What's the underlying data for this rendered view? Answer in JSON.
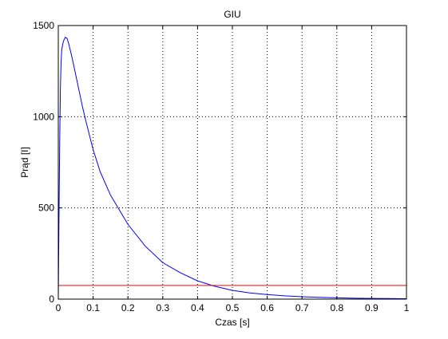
{
  "chart_data": {
    "type": "line",
    "title": "GIU",
    "xlabel": "Czas [s]",
    "ylabel": "Prąd [I]",
    "xlim": [
      0,
      1
    ],
    "ylim": [
      0,
      1500
    ],
    "grid": true,
    "x_ticks": [
      "0",
      "0.1",
      "0.2",
      "0.3",
      "0.4",
      "0.5",
      "0.6",
      "0.7",
      "0.8",
      "0.9",
      "1"
    ],
    "y_ticks": [
      "0",
      "500",
      "1000",
      "1500"
    ],
    "series": [
      {
        "color": "#0000ff",
        "x": [
          0,
          0.002,
          0.004,
          0.006,
          0.008,
          0.01,
          0.013,
          0.016,
          0.02,
          0.025,
          0.03,
          0.04,
          0.05,
          0.06,
          0.07,
          0.08,
          0.1,
          0.12,
          0.15,
          0.2,
          0.25,
          0.3,
          0.35,
          0.4,
          0.45,
          0.5,
          0.55,
          0.6,
          0.65,
          0.7,
          0.75,
          0.8,
          0.85,
          0.9,
          0.95,
          1.0
        ],
        "y": [
          0,
          450,
          850,
          1150,
          1300,
          1370,
          1400,
          1420,
          1435,
          1430,
          1400,
          1320,
          1230,
          1140,
          1050,
          970,
          820,
          700,
          570,
          410,
          290,
          200,
          145,
          100,
          70,
          48,
          34,
          25,
          18,
          13,
          10,
          7,
          5,
          4,
          3,
          2
        ]
      },
      {
        "color": "#ff0000",
        "x": [
          0,
          1
        ],
        "y": [
          75,
          75
        ]
      }
    ]
  }
}
